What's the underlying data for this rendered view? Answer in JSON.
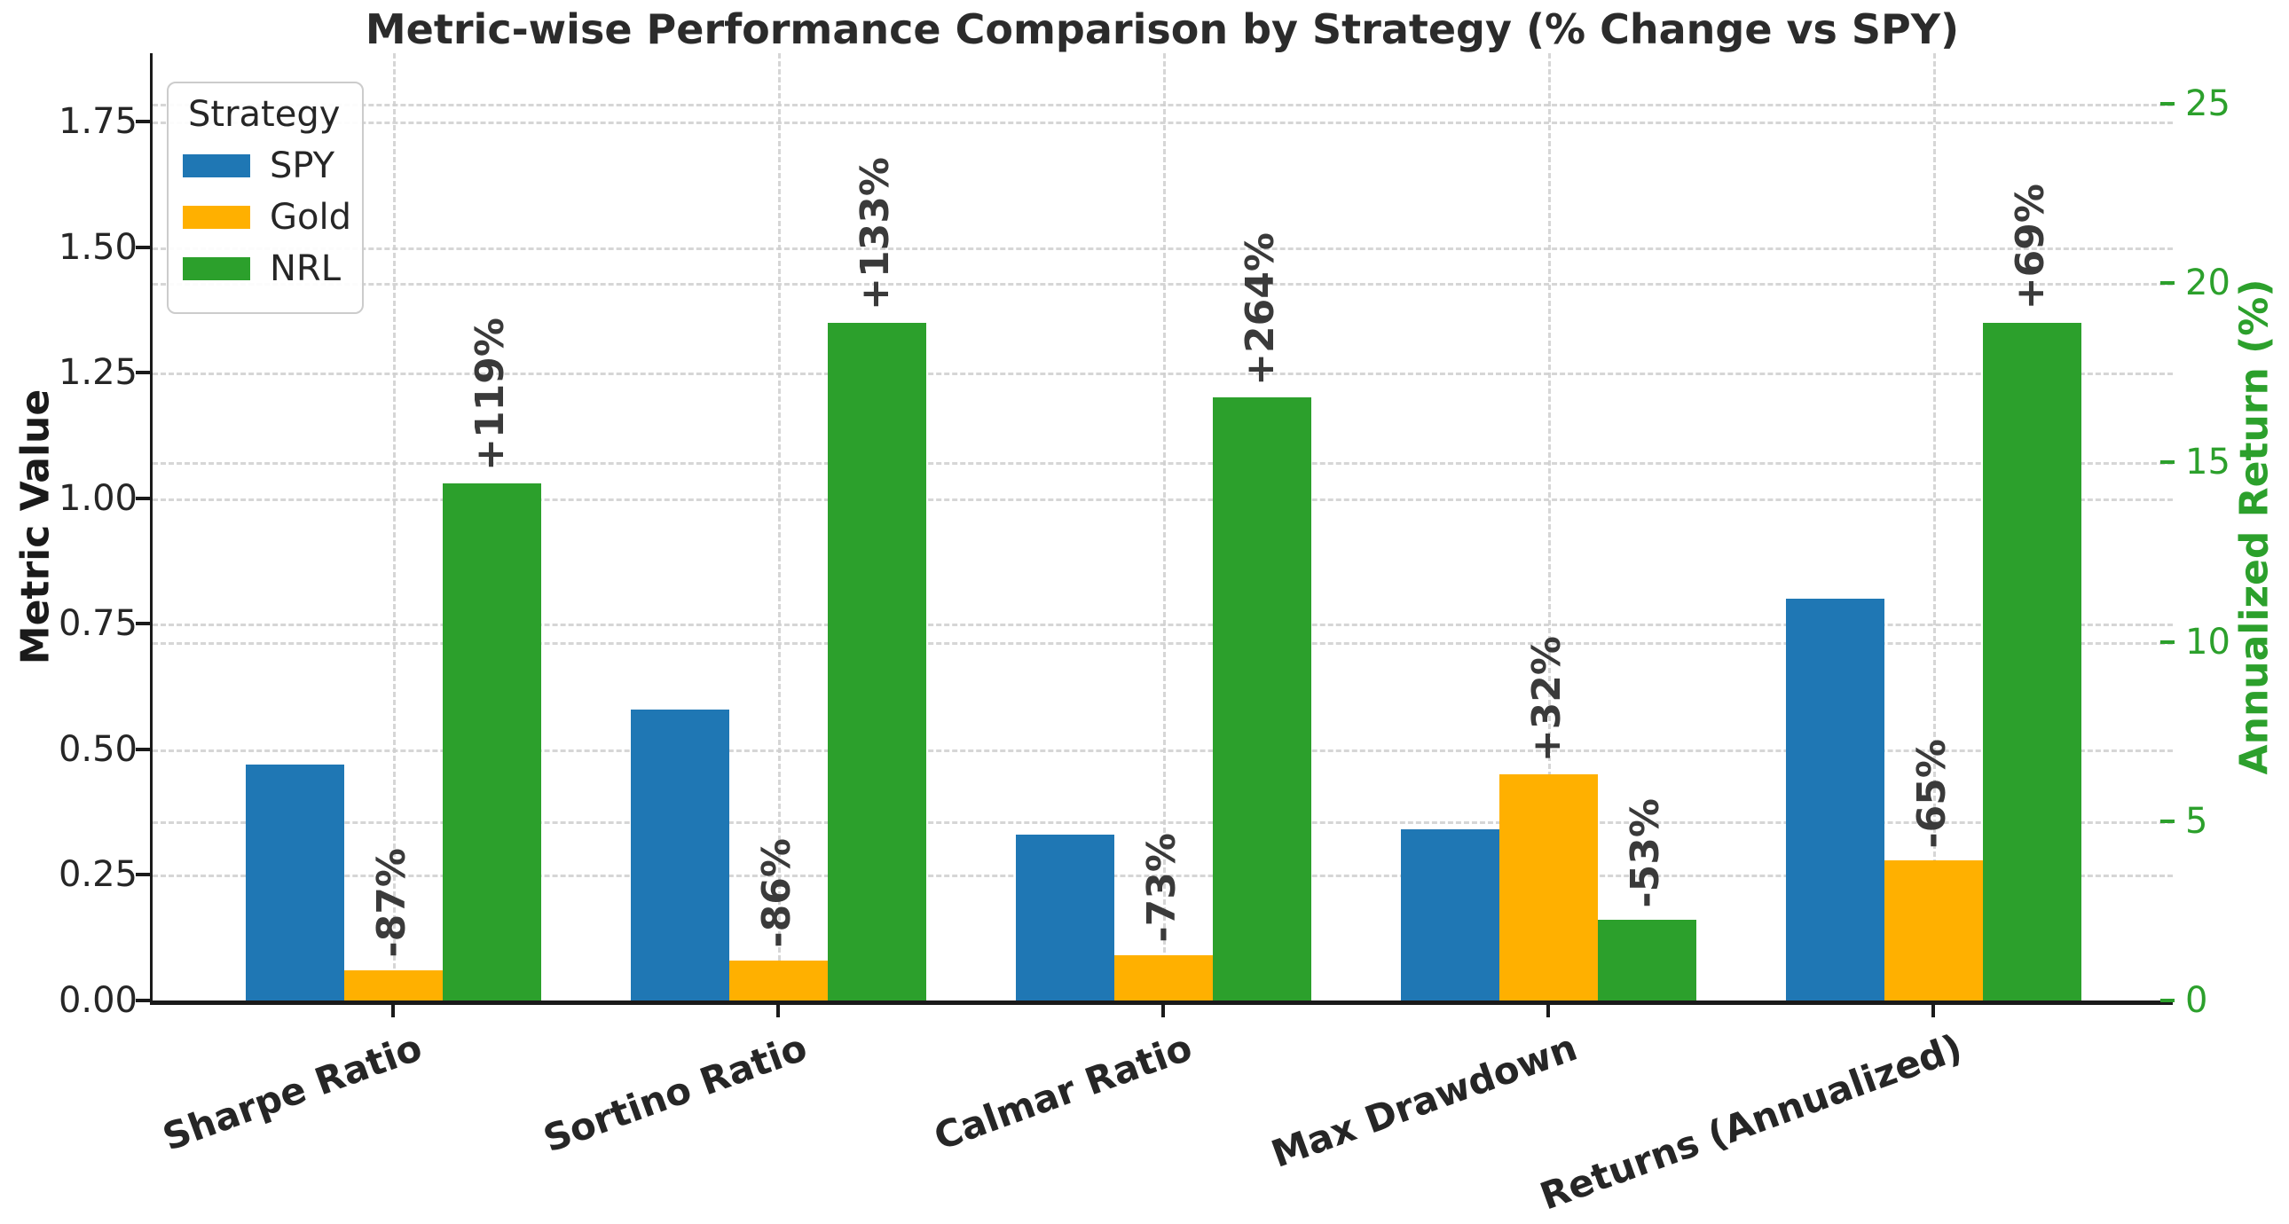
{
  "title": "Metric-wise Performance Comparison by Strategy (% Change vs SPY)",
  "axes": {
    "left_label": "Metric Value",
    "right_label": "Annualized Return (%)",
    "left_ticks": [
      "0.00",
      "0.25",
      "0.50",
      "0.75",
      "1.00",
      "1.25",
      "1.50",
      "1.75"
    ],
    "right_ticks": [
      "0",
      "5",
      "10",
      "15",
      "20",
      "25"
    ]
  },
  "legend": {
    "title": "Strategy",
    "entries": [
      {
        "label": "SPY",
        "color": "#1f77b4"
      },
      {
        "label": "Gold",
        "color": "#ffb000"
      },
      {
        "label": "NRL",
        "color": "#2ca02c"
      }
    ]
  },
  "chart_data": {
    "type": "bar",
    "title": "Metric-wise Performance Comparison by Strategy (% Change vs SPY)",
    "xlabel": "",
    "ylabel_left": "Metric Value",
    "ylabel_right": "Annualized Return (%)",
    "categories": [
      "Sharpe Ratio",
      "Sortino Ratio",
      "Calmar Ratio",
      "Max Drawdown",
      "Returns (Annualized)"
    ],
    "right_axis_categories": [
      "Returns (Annualized)"
    ],
    "series": [
      {
        "name": "SPY",
        "color": "#1f77b4",
        "values": [
          0.47,
          0.58,
          0.33,
          0.34,
          11.2
        ]
      },
      {
        "name": "Gold",
        "color": "#ffb000",
        "values": [
          0.06,
          0.08,
          0.09,
          0.45,
          3.9
        ]
      },
      {
        "name": "NRL",
        "color": "#2ca02c",
        "values": [
          1.03,
          1.35,
          1.2,
          0.16,
          18.9
        ]
      }
    ],
    "annotations": [
      {
        "category": "Sharpe Ratio",
        "gold": "-87%",
        "nrl": "+119%"
      },
      {
        "category": "Sortino Ratio",
        "gold": "-86%",
        "nrl": "+133%"
      },
      {
        "category": "Calmar Ratio",
        "gold": "-73%",
        "nrl": "+264%"
      },
      {
        "category": "Max Drawdown",
        "gold": "+32%",
        "nrl": "-53%"
      },
      {
        "category": "Returns (Annualized)",
        "gold": "-65%",
        "nrl": "+69%"
      }
    ],
    "ylim_left": [
      0,
      1.89
    ],
    "ylim_right": [
      0,
      26.4
    ],
    "grid": true,
    "legend_position": "upper left",
    "colors": {
      "grid": "#cfcfcf",
      "text": "#262626",
      "right_axis": "#2ca02c"
    }
  }
}
